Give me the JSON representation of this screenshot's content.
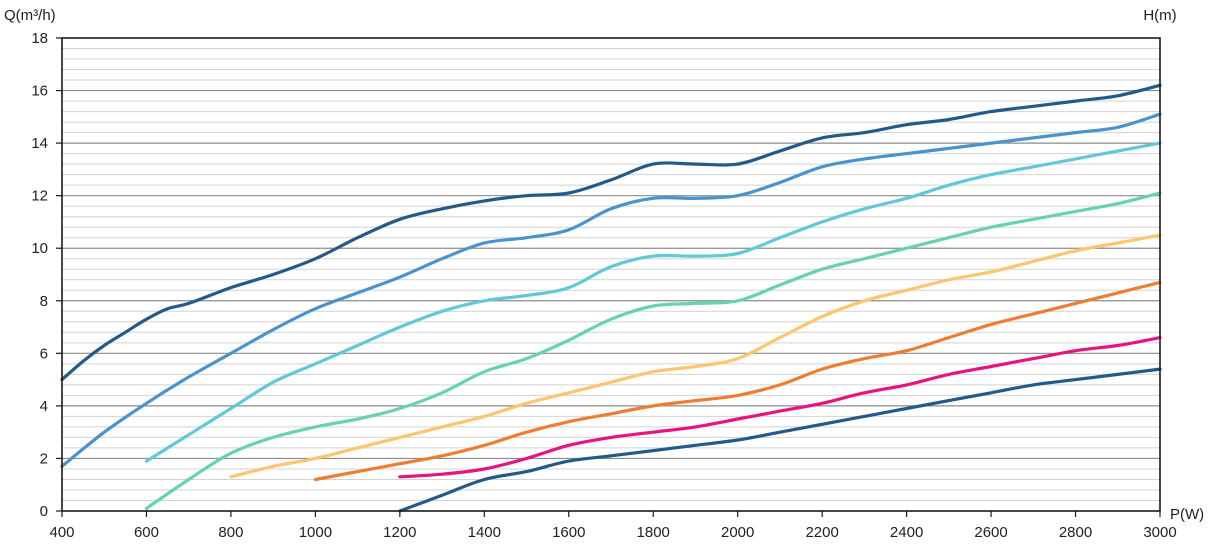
{
  "chart_data": {
    "type": "line",
    "title": "",
    "xlabel": "P(W)",
    "ylabel_left": "Q(m³/h)",
    "ylabel_right": "H(m)",
    "xlim": [
      400,
      3000
    ],
    "ylim": [
      0,
      18
    ],
    "x_ticks": [
      "400",
      "600",
      "800",
      "1000",
      "1200",
      "1400",
      "1600",
      "1800",
      "2000",
      "2200",
      "2400",
      "2600",
      "2800",
      "3000"
    ],
    "y_ticks": [
      "0",
      "2",
      "4",
      "6",
      "8",
      "10",
      "12",
      "14",
      "16",
      "18"
    ],
    "grid": {
      "major_y": true,
      "minor_y": true,
      "major_step": 2,
      "minor_step": 0.4
    },
    "series": [
      {
        "color": "#245a88",
        "points": [
          [
            400,
            5.0
          ],
          [
            450,
            5.7
          ],
          [
            500,
            6.3
          ],
          [
            550,
            6.8
          ],
          [
            600,
            7.3
          ],
          [
            650,
            7.7
          ],
          [
            700,
            7.9
          ],
          [
            800,
            8.5
          ],
          [
            900,
            9.0
          ],
          [
            1000,
            9.6
          ],
          [
            1100,
            10.4
          ],
          [
            1200,
            11.1
          ],
          [
            1300,
            11.5
          ],
          [
            1400,
            11.8
          ],
          [
            1500,
            12.0
          ],
          [
            1600,
            12.1
          ],
          [
            1700,
            12.6
          ],
          [
            1800,
            13.2
          ],
          [
            1900,
            13.2
          ],
          [
            2000,
            13.2
          ],
          [
            2100,
            13.7
          ],
          [
            2200,
            14.2
          ],
          [
            2300,
            14.4
          ],
          [
            2400,
            14.7
          ],
          [
            2500,
            14.9
          ],
          [
            2600,
            15.2
          ],
          [
            2700,
            15.4
          ],
          [
            2800,
            15.6
          ],
          [
            2900,
            15.8
          ],
          [
            3000,
            16.2
          ]
        ]
      },
      {
        "color": "#4a93cd",
        "points": [
          [
            400,
            1.7
          ],
          [
            500,
            3.0
          ],
          [
            600,
            4.1
          ],
          [
            700,
            5.1
          ],
          [
            800,
            6.0
          ],
          [
            900,
            6.9
          ],
          [
            1000,
            7.7
          ],
          [
            1100,
            8.3
          ],
          [
            1200,
            8.9
          ],
          [
            1300,
            9.6
          ],
          [
            1400,
            10.2
          ],
          [
            1500,
            10.4
          ],
          [
            1600,
            10.7
          ],
          [
            1700,
            11.5
          ],
          [
            1800,
            11.9
          ],
          [
            1900,
            11.9
          ],
          [
            2000,
            12.0
          ],
          [
            2100,
            12.5
          ],
          [
            2200,
            13.1
          ],
          [
            2300,
            13.4
          ],
          [
            2400,
            13.6
          ],
          [
            2500,
            13.8
          ],
          [
            2600,
            14.0
          ],
          [
            2700,
            14.2
          ],
          [
            2800,
            14.4
          ],
          [
            2900,
            14.6
          ],
          [
            3000,
            15.1
          ]
        ]
      },
      {
        "color": "#62c8d8",
        "points": [
          [
            600,
            1.9
          ],
          [
            700,
            2.9
          ],
          [
            800,
            3.9
          ],
          [
            900,
            4.9
          ],
          [
            1000,
            5.6
          ],
          [
            1100,
            6.3
          ],
          [
            1200,
            7.0
          ],
          [
            1300,
            7.6
          ],
          [
            1400,
            8.0
          ],
          [
            1500,
            8.2
          ],
          [
            1600,
            8.5
          ],
          [
            1700,
            9.3
          ],
          [
            1800,
            9.7
          ],
          [
            1900,
            9.7
          ],
          [
            2000,
            9.8
          ],
          [
            2100,
            10.4
          ],
          [
            2200,
            11.0
          ],
          [
            2300,
            11.5
          ],
          [
            2400,
            11.9
          ],
          [
            2500,
            12.4
          ],
          [
            2600,
            12.8
          ],
          [
            2700,
            13.1
          ],
          [
            2800,
            13.4
          ],
          [
            2900,
            13.7
          ],
          [
            3000,
            14.0
          ]
        ]
      },
      {
        "color": "#66d4a4",
        "points": [
          [
            600,
            0.1
          ],
          [
            700,
            1.2
          ],
          [
            800,
            2.2
          ],
          [
            900,
            2.8
          ],
          [
            1000,
            3.2
          ],
          [
            1100,
            3.5
          ],
          [
            1200,
            3.9
          ],
          [
            1300,
            4.5
          ],
          [
            1400,
            5.3
          ],
          [
            1500,
            5.8
          ],
          [
            1600,
            6.5
          ],
          [
            1700,
            7.3
          ],
          [
            1800,
            7.8
          ],
          [
            1900,
            7.9
          ],
          [
            2000,
            8.0
          ],
          [
            2100,
            8.6
          ],
          [
            2200,
            9.2
          ],
          [
            2300,
            9.6
          ],
          [
            2400,
            10.0
          ],
          [
            2500,
            10.4
          ],
          [
            2600,
            10.8
          ],
          [
            2700,
            11.1
          ],
          [
            2800,
            11.4
          ],
          [
            2900,
            11.7
          ],
          [
            3000,
            12.1
          ]
        ]
      },
      {
        "color": "#fcc570",
        "points": [
          [
            800,
            1.3
          ],
          [
            900,
            1.7
          ],
          [
            1000,
            2.0
          ],
          [
            1100,
            2.4
          ],
          [
            1200,
            2.8
          ],
          [
            1300,
            3.2
          ],
          [
            1400,
            3.6
          ],
          [
            1500,
            4.1
          ],
          [
            1600,
            4.5
          ],
          [
            1700,
            4.9
          ],
          [
            1800,
            5.3
          ],
          [
            1900,
            5.5
          ],
          [
            2000,
            5.8
          ],
          [
            2100,
            6.6
          ],
          [
            2200,
            7.4
          ],
          [
            2300,
            8.0
          ],
          [
            2400,
            8.4
          ],
          [
            2500,
            8.8
          ],
          [
            2600,
            9.1
          ],
          [
            2700,
            9.5
          ],
          [
            2800,
            9.9
          ],
          [
            2900,
            10.2
          ],
          [
            3000,
            10.5
          ]
        ]
      },
      {
        "color": "#ee7d32",
        "points": [
          [
            1000,
            1.2
          ],
          [
            1100,
            1.5
          ],
          [
            1200,
            1.8
          ],
          [
            1300,
            2.1
          ],
          [
            1400,
            2.5
          ],
          [
            1500,
            3.0
          ],
          [
            1600,
            3.4
          ],
          [
            1700,
            3.7
          ],
          [
            1800,
            4.0
          ],
          [
            1900,
            4.2
          ],
          [
            2000,
            4.4
          ],
          [
            2100,
            4.8
          ],
          [
            2200,
            5.4
          ],
          [
            2300,
            5.8
          ],
          [
            2400,
            6.1
          ],
          [
            2500,
            6.6
          ],
          [
            2600,
            7.1
          ],
          [
            2700,
            7.5
          ],
          [
            2800,
            7.9
          ],
          [
            2900,
            8.3
          ],
          [
            3000,
            8.7
          ]
        ]
      },
      {
        "color": "#e5157e",
        "points": [
          [
            1200,
            1.3
          ],
          [
            1300,
            1.4
          ],
          [
            1400,
            1.6
          ],
          [
            1500,
            2.0
          ],
          [
            1600,
            2.5
          ],
          [
            1700,
            2.8
          ],
          [
            1800,
            3.0
          ],
          [
            1900,
            3.2
          ],
          [
            2000,
            3.5
          ],
          [
            2100,
            3.8
          ],
          [
            2200,
            4.1
          ],
          [
            2300,
            4.5
          ],
          [
            2400,
            4.8
          ],
          [
            2500,
            5.2
          ],
          [
            2600,
            5.5
          ],
          [
            2700,
            5.8
          ],
          [
            2800,
            6.1
          ],
          [
            2900,
            6.3
          ],
          [
            3000,
            6.6
          ]
        ]
      },
      {
        "color": "#245a88",
        "points": [
          [
            1200,
            0.0
          ],
          [
            1300,
            0.6
          ],
          [
            1400,
            1.2
          ],
          [
            1500,
            1.5
          ],
          [
            1600,
            1.9
          ],
          [
            1700,
            2.1
          ],
          [
            1800,
            2.3
          ],
          [
            1900,
            2.5
          ],
          [
            2000,
            2.7
          ],
          [
            2100,
            3.0
          ],
          [
            2200,
            3.3
          ],
          [
            2300,
            3.6
          ],
          [
            2400,
            3.9
          ],
          [
            2500,
            4.2
          ],
          [
            2600,
            4.5
          ],
          [
            2700,
            4.8
          ],
          [
            2800,
            5.0
          ],
          [
            2900,
            5.2
          ],
          [
            3000,
            5.4
          ]
        ]
      }
    ]
  }
}
